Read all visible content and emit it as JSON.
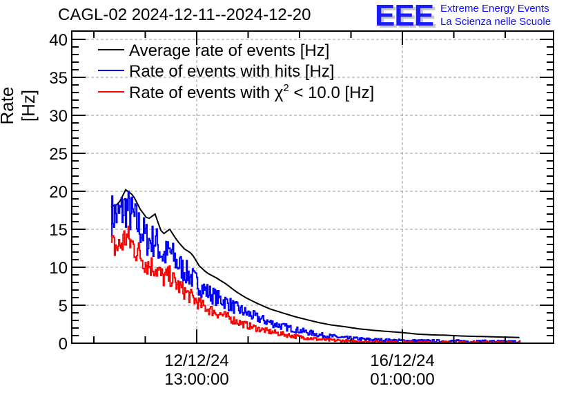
{
  "logo": {
    "mark": "EEE",
    "line1": "Extreme Energy Events",
    "line2": "La Scienza nelle Scuole"
  },
  "chart_data": {
    "type": "line",
    "title": "CAGL-02 2024-12-11--2024-12-20",
    "xlabel": "",
    "ylabel": "Rate [Hz]",
    "ylim": [
      0,
      40
    ],
    "yticks": [
      "0",
      "5",
      "10",
      "15",
      "20",
      "25",
      "30",
      "35",
      "40"
    ],
    "xaxis_unit": "hours since 12/12/24 13:00:00",
    "xlim": [
      -51,
      146
    ],
    "xticks": [
      {
        "x": 0,
        "label_line1": "12/12/24",
        "label_line2": "13:00:00"
      },
      {
        "x": 84,
        "label_line1": "16/12/24",
        "label_line2": "01:00:00"
      }
    ],
    "grid": true,
    "legend_placement": "top-left",
    "legend": [
      {
        "label": "Average rate of events [Hz]",
        "color": "#000000"
      },
      {
        "label": "Rate of events with hits [Hz]",
        "color": "#0000ff"
      },
      {
        "label_prefix": "Rate of events with ",
        "label_symbol": "χ",
        "label_sup": "2",
        "label_suffix": " < 10.0 [Hz]",
        "color": "#ff0000"
      }
    ],
    "x": [
      -35,
      -32,
      -29,
      -26,
      -23,
      -20,
      -17,
      -14,
      -11,
      -8,
      -5,
      -2,
      1,
      4,
      8,
      12,
      16,
      20,
      25,
      30,
      35,
      40,
      45,
      50,
      55,
      60,
      66,
      72,
      78,
      84,
      90,
      96,
      102,
      108,
      114,
      120,
      126,
      132
    ],
    "series": [
      {
        "name": "Average rate of events [Hz]",
        "color": "#000000",
        "noise": 0,
        "values": [
          18.0,
          18.3,
          20.2,
          19.5,
          17.6,
          16.3,
          17.0,
          14.3,
          15.0,
          13.5,
          12.4,
          11.8,
          10.2,
          9.3,
          8.6,
          7.8,
          6.8,
          6.0,
          5.2,
          4.5,
          4.0,
          3.5,
          3.1,
          2.7,
          2.4,
          2.2,
          1.9,
          1.7,
          1.55,
          1.4,
          1.2,
          1.1,
          1.05,
          0.95,
          0.9,
          0.85,
          0.8,
          0.75
        ]
      },
      {
        "name": "Rate of events with hits [Hz]",
        "color": "#0000ff",
        "noise": 1.6,
        "values": [
          17.0,
          16.8,
          18.0,
          16.5,
          15.0,
          13.5,
          13.5,
          11.5,
          12.0,
          10.5,
          9.5,
          8.6,
          7.6,
          6.8,
          6.0,
          5.4,
          4.6,
          4.0,
          3.3,
          2.7,
          2.2,
          1.8,
          1.45,
          1.1,
          0.9,
          0.7,
          0.55,
          0.45,
          0.38,
          0.33,
          0.3,
          0.28,
          0.26,
          0.25,
          0.24,
          0.22,
          0.2,
          0.2
        ]
      },
      {
        "name": "Rate of events with chi2 < 10.0 [Hz]",
        "color": "#ff0000",
        "noise": 1.4,
        "values": [
          12.8,
          12.6,
          14.0,
          12.8,
          11.5,
          10.3,
          10.0,
          8.6,
          8.8,
          7.6,
          6.8,
          6.0,
          5.2,
          4.6,
          4.0,
          3.5,
          2.9,
          2.4,
          1.9,
          1.5,
          1.2,
          0.9,
          0.7,
          0.5,
          0.4,
          0.3,
          0.22,
          0.18,
          0.15,
          0.13,
          0.12,
          0.11,
          0.1,
          0.1,
          0.09,
          0.09,
          0.08,
          0.08
        ]
      }
    ]
  }
}
